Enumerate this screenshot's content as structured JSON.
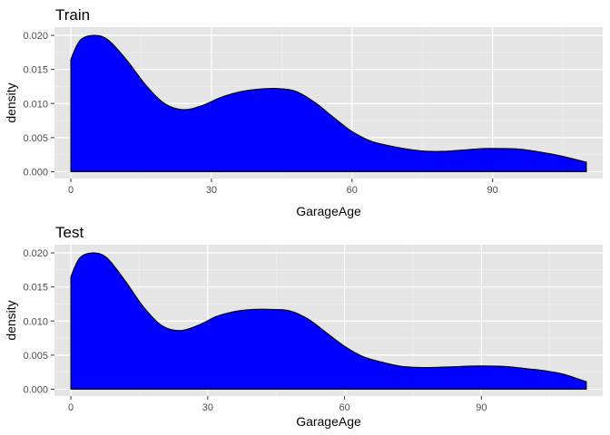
{
  "colors": {
    "panel_background": "#e5e5e5",
    "grid_major": "#ffffff",
    "grid_minor": "#f2f2f2",
    "fill": "#0000ff",
    "outline": "#000000",
    "tick_text": "#4d4d4d"
  },
  "chart_data": [
    {
      "type": "area",
      "title": "Train",
      "xlabel": "GarageAge",
      "ylabel": "density",
      "xlim": [
        -3.5,
        113.5
      ],
      "ylim": [
        -0.001,
        0.0212
      ],
      "x_ticks": [
        0,
        30,
        60,
        90
      ],
      "x_tick_labels": [
        "0",
        "30",
        "60",
        "90"
      ],
      "y_ticks": [
        0,
        0.005,
        0.01,
        0.015,
        0.02
      ],
      "y_tick_labels": [
        "0.000",
        "0.005",
        "0.010",
        "0.015",
        "0.020"
      ],
      "grid": true,
      "legend": "none",
      "series": [
        {
          "x": [
            0,
            2,
            5,
            8,
            12,
            16,
            20,
            24,
            28,
            32,
            36,
            40,
            44,
            48,
            52,
            56,
            60,
            64,
            68,
            72,
            76,
            80,
            84,
            88,
            92,
            96,
            100,
            104,
            110
          ],
          "y": [
            0.0165,
            0.0193,
            0.02,
            0.0193,
            0.0163,
            0.0127,
            0.01,
            0.0091,
            0.0097,
            0.0109,
            0.0117,
            0.0121,
            0.0122,
            0.0118,
            0.0102,
            0.008,
            0.0059,
            0.0045,
            0.0038,
            0.0033,
            0.003,
            0.003,
            0.0032,
            0.0034,
            0.0034,
            0.0033,
            0.0029,
            0.0024,
            0.0014
          ]
        }
      ]
    },
    {
      "type": "area",
      "title": "Test",
      "xlabel": "GarageAge",
      "ylabel": "density",
      "xlim": [
        -3.6,
        116.6
      ],
      "ylim": [
        -0.001,
        0.0212
      ],
      "x_ticks": [
        0,
        30,
        60,
        90
      ],
      "x_tick_labels": [
        "0",
        "30",
        "60",
        "90"
      ],
      "y_ticks": [
        0,
        0.005,
        0.01,
        0.015,
        0.02
      ],
      "y_tick_labels": [
        "0.000",
        "0.005",
        "0.010",
        "0.015",
        "0.020"
      ],
      "grid": true,
      "legend": "none",
      "series": [
        {
          "x": [
            0,
            2,
            5,
            8,
            12,
            16,
            20,
            24,
            28,
            32,
            36,
            40,
            44,
            48,
            52,
            56,
            60,
            64,
            68,
            72,
            76,
            80,
            84,
            88,
            92,
            96,
            100,
            104,
            108,
            113
          ],
          "y": [
            0.0165,
            0.0193,
            0.02,
            0.0192,
            0.0158,
            0.012,
            0.0093,
            0.0086,
            0.0094,
            0.0107,
            0.0114,
            0.0117,
            0.0117,
            0.0115,
            0.0103,
            0.0083,
            0.0063,
            0.0048,
            0.004,
            0.0034,
            0.0032,
            0.0032,
            0.0033,
            0.0034,
            0.0034,
            0.0033,
            0.003,
            0.0027,
            0.0022,
            0.0011
          ]
        }
      ]
    }
  ]
}
